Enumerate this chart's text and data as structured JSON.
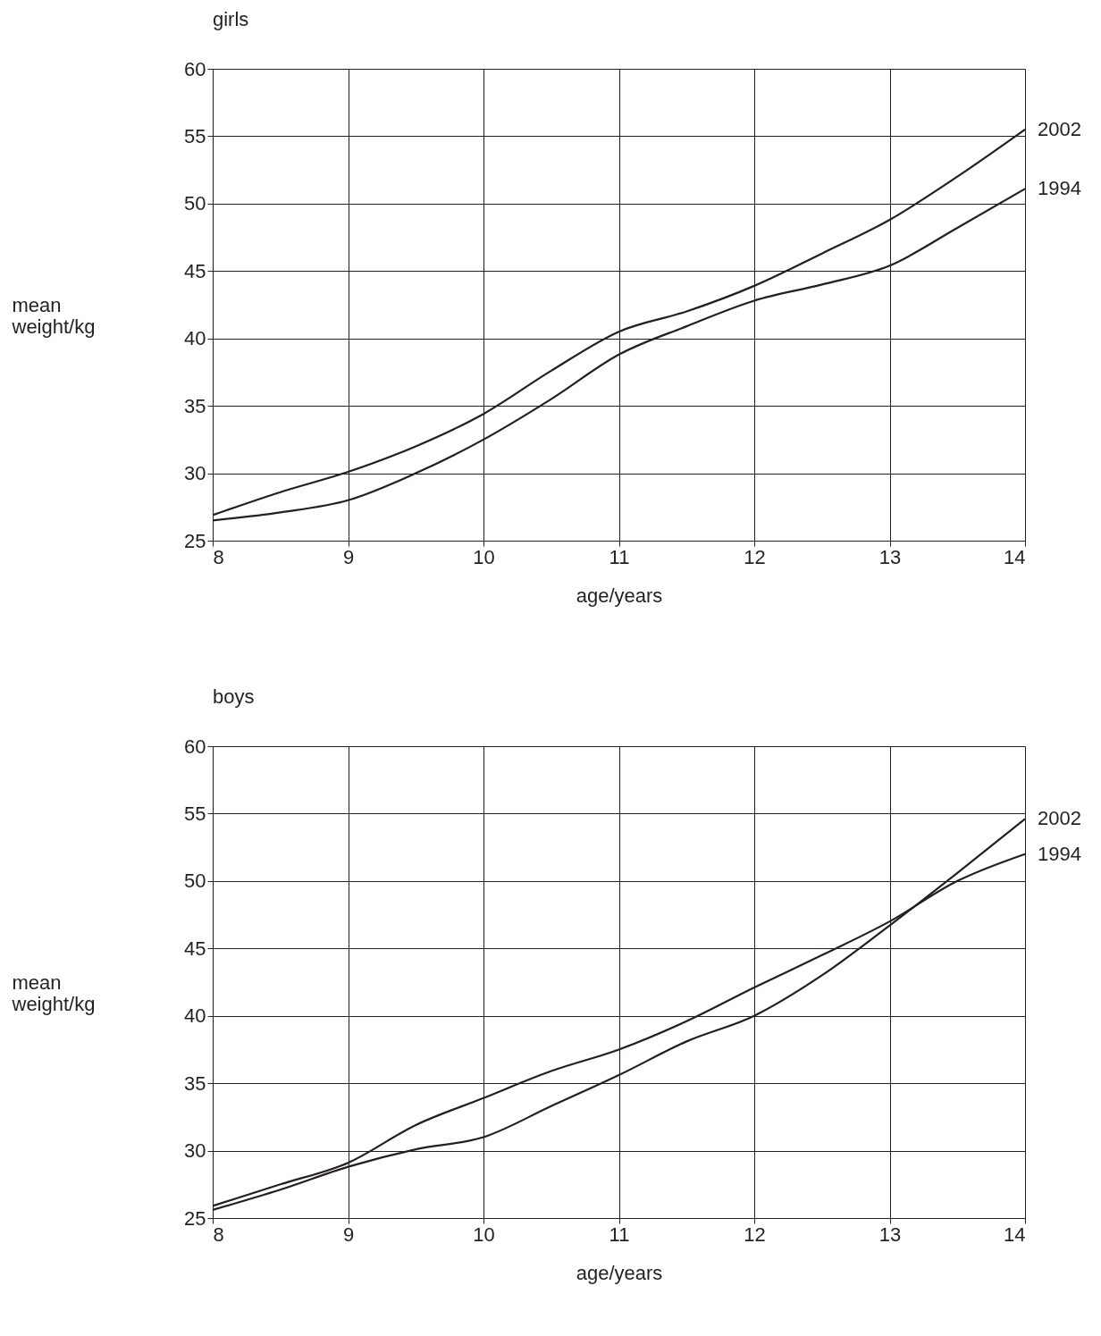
{
  "chart_data": [
    {
      "type": "line",
      "title": "girls",
      "xlabel": "age/years",
      "ylabel": "mean weight/kg",
      "x": [
        8,
        8.5,
        9,
        9.5,
        10,
        10.5,
        11,
        11.5,
        12,
        12.5,
        13,
        13.5,
        14
      ],
      "series": [
        {
          "name": "2002",
          "color": "#231f20",
          "values": [
            26.9,
            28.6,
            30.1,
            32.0,
            34.4,
            37.6,
            40.5,
            42.0,
            43.9,
            46.3,
            48.8,
            52.0,
            55.5
          ]
        },
        {
          "name": "1994",
          "color": "#231f20",
          "values": [
            26.5,
            27.1,
            28.0,
            30.0,
            32.5,
            35.5,
            38.8,
            40.9,
            42.8,
            44.0,
            45.4,
            48.2,
            51.1
          ]
        }
      ],
      "xlim": [
        8,
        14
      ],
      "xticks": [
        8,
        9,
        10,
        11,
        12,
        13,
        14
      ],
      "ylim": [
        25,
        60
      ],
      "yticks": [
        25,
        30,
        35,
        40,
        45,
        50,
        55,
        60
      ],
      "grid": true,
      "marker": "none",
      "line_style": "solid"
    },
    {
      "type": "line",
      "title": "boys",
      "xlabel": "age/years",
      "ylabel": "mean weight/kg",
      "x": [
        8,
        8.5,
        9,
        9.5,
        10,
        10.5,
        11,
        11.5,
        12,
        12.5,
        13,
        13.5,
        14
      ],
      "series": [
        {
          "name": "2002",
          "color": "#231f20",
          "values": [
            25.6,
            27.1,
            28.8,
            30.1,
            31.0,
            33.3,
            35.6,
            38.1,
            40.0,
            43.0,
            46.7,
            50.6,
            54.6
          ]
        },
        {
          "name": "1994",
          "color": "#231f20",
          "values": [
            25.9,
            27.5,
            29.1,
            31.9,
            33.9,
            35.9,
            37.5,
            39.6,
            42.1,
            44.5,
            47.0,
            50.0,
            52.0
          ]
        }
      ],
      "xlim": [
        8,
        14
      ],
      "xticks": [
        8,
        9,
        10,
        11,
        12,
        13,
        14
      ],
      "ylim": [
        25,
        60
      ],
      "yticks": [
        25,
        30,
        35,
        40,
        45,
        50,
        55,
        60
      ],
      "grid": true,
      "marker": "none",
      "line_style": "solid"
    }
  ]
}
